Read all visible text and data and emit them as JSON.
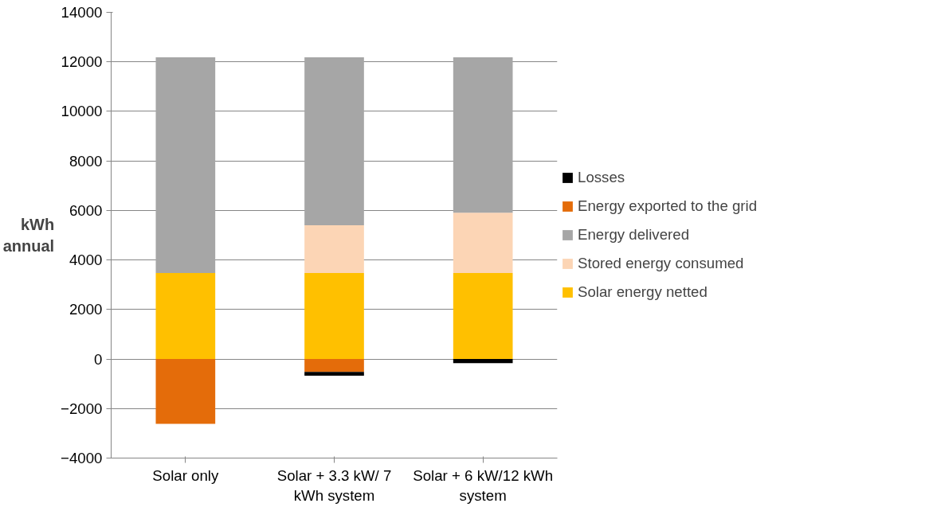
{
  "chart_data": {
    "type": "bar",
    "stacked": true,
    "ylabel": "kWh annual",
    "categories": [
      "Solar only",
      "Solar + 3.3 kW/ 7 kWh system",
      "Solar + 6 kW/12 kWh system"
    ],
    "ylim": [
      -4000,
      14000
    ],
    "yticks": [
      -4000,
      -2000,
      0,
      2000,
      4000,
      6000,
      8000,
      10000,
      12000,
      14000
    ],
    "grid": "y",
    "legend": "right",
    "series": [
      {
        "name": "Solar energy netted",
        "color": "#ffc000",
        "values": [
          3470,
          3470,
          3470
        ]
      },
      {
        "name": "Stored energy consumed",
        "color": "#fcd5b5",
        "values": [
          0,
          1930,
          2440
        ]
      },
      {
        "name": "Energy delivered",
        "color": "#a6a6a6",
        "values": [
          8710,
          6780,
          6270
        ]
      },
      {
        "name": "Energy exported to the grid",
        "color": "#e46c0a",
        "values": [
          -2620,
          -520,
          0
        ]
      },
      {
        "name": "Losses",
        "color": "#000000",
        "values": [
          0,
          -150,
          -170
        ]
      }
    ]
  }
}
